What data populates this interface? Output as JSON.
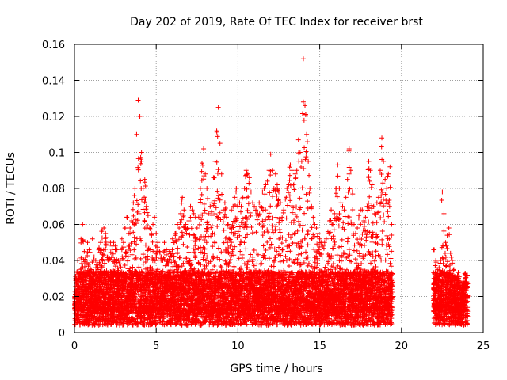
{
  "chart_data": {
    "type": "scatter",
    "title": "Day 202 of 2019, Rate Of TEC Index for receiver brst",
    "xlabel": "GPS time / hours",
    "ylabel": "ROTI / TECUs",
    "xlim": [
      0,
      25
    ],
    "ylim": [
      0,
      0.16
    ],
    "xticks": [
      "0",
      "5",
      "10",
      "15",
      "20",
      "25"
    ],
    "yticks": [
      "0",
      "0.02",
      "0.04",
      "0.06",
      "0.08",
      "0.1",
      "0.12",
      "0.14",
      "0.16"
    ],
    "grid": true,
    "marker": "+",
    "color": "#ff0000",
    "series": [
      {
        "x": [
          0.0,
          0.1,
          0.2,
          0.3,
          0.4,
          0.5,
          0.6,
          0.7,
          0.8,
          0.9,
          1.0,
          1.1,
          1.2,
          1.3,
          1.4,
          1.5,
          1.6,
          1.7,
          1.8,
          1.9,
          2.0,
          2.1,
          2.2,
          2.3,
          2.4,
          2.5,
          2.6,
          2.7,
          2.8,
          2.9,
          3.0,
          3.1,
          3.2,
          3.3,
          3.4,
          3.5,
          3.6,
          3.7,
          3.8,
          3.9,
          4.0,
          4.1,
          4.2,
          4.3,
          4.4,
          4.5,
          4.6,
          4.7,
          4.8,
          4.9,
          5.0,
          5.1,
          5.2,
          5.3,
          5.4,
          5.5,
          5.6,
          5.7,
          5.8,
          5.9,
          6.0,
          6.1,
          6.2,
          6.3,
          6.4,
          6.5,
          6.6,
          6.7,
          6.8,
          6.9,
          7.0,
          7.1,
          7.2,
          7.3,
          7.4,
          7.5,
          7.6,
          7.7,
          7.8,
          7.9,
          8.0,
          8.1,
          8.2,
          8.3,
          8.4,
          8.5,
          8.6,
          8.7,
          8.8,
          8.9,
          9.0,
          9.1,
          9.2,
          9.3,
          9.4,
          9.5,
          9.6,
          9.7,
          9.8,
          9.9,
          10.0,
          10.1,
          10.2,
          10.3,
          10.4,
          10.5,
          10.6,
          10.7,
          10.8,
          10.9,
          11.0,
          11.1,
          11.2,
          11.3,
          11.4,
          11.5,
          11.6,
          11.7,
          11.8,
          11.9,
          12.0,
          12.1,
          12.2,
          12.3,
          12.4,
          12.5,
          12.6,
          12.7,
          12.8,
          12.9,
          13.0,
          13.1,
          13.2,
          13.3,
          13.4,
          13.5,
          13.6,
          13.7,
          13.8,
          13.9,
          14.0,
          14.1,
          14.2,
          14.3,
          14.4,
          14.5,
          14.6,
          14.7,
          14.8,
          14.9,
          15.0,
          15.1,
          15.2,
          15.3,
          15.4,
          15.5,
          15.6,
          15.7,
          15.8,
          15.9,
          16.0,
          16.1,
          16.2,
          16.3,
          16.4,
          16.5,
          16.6,
          16.7,
          16.8,
          16.9,
          17.0,
          17.1,
          17.2,
          17.3,
          17.4,
          17.5,
          17.6,
          17.7,
          17.8,
          17.9,
          18.0,
          18.1,
          18.2,
          18.3,
          18.4,
          18.5,
          18.6,
          18.7,
          18.8,
          18.9,
          19.0,
          19.1,
          19.2,
          19.3,
          19.4,
          22.0,
          22.1,
          22.2,
          22.3,
          22.4,
          22.5,
          22.6,
          22.7,
          22.8,
          22.9,
          23.0,
          23.1,
          23.2,
          23.3,
          23.4,
          23.5,
          23.6,
          23.7,
          23.8,
          23.9,
          24.0
        ],
        "y": [
          0.023,
          0.028,
          0.04,
          0.033,
          0.052,
          0.06,
          0.045,
          0.038,
          0.05,
          0.046,
          0.035,
          0.052,
          0.042,
          0.04,
          0.038,
          0.047,
          0.05,
          0.057,
          0.058,
          0.055,
          0.042,
          0.04,
          0.05,
          0.048,
          0.05,
          0.048,
          0.046,
          0.04,
          0.04,
          0.052,
          0.05,
          0.058,
          0.064,
          0.055,
          0.058,
          0.062,
          0.072,
          0.08,
          0.11,
          0.129,
          0.12,
          0.1,
          0.08,
          0.085,
          0.07,
          0.065,
          0.058,
          0.055,
          0.06,
          0.064,
          0.055,
          0.05,
          0.045,
          0.042,
          0.04,
          0.05,
          0.046,
          0.04,
          0.045,
          0.044,
          0.052,
          0.05,
          0.055,
          0.06,
          0.058,
          0.066,
          0.075,
          0.068,
          0.06,
          0.058,
          0.062,
          0.07,
          0.068,
          0.066,
          0.064,
          0.058,
          0.064,
          0.08,
          0.094,
          0.102,
          0.088,
          0.08,
          0.066,
          0.07,
          0.072,
          0.086,
          0.095,
          0.112,
          0.125,
          0.105,
          0.088,
          0.068,
          0.072,
          0.064,
          0.06,
          0.058,
          0.068,
          0.07,
          0.075,
          0.08,
          0.074,
          0.072,
          0.07,
          0.075,
          0.08,
          0.09,
          0.088,
          0.086,
          0.078,
          0.072,
          0.07,
          0.068,
          0.066,
          0.072,
          0.07,
          0.078,
          0.08,
          0.082,
          0.084,
          0.09,
          0.099,
          0.09,
          0.08,
          0.088,
          0.082,
          0.078,
          0.072,
          0.064,
          0.068,
          0.074,
          0.08,
          0.082,
          0.093,
          0.09,
          0.082,
          0.088,
          0.09,
          0.107,
          0.1,
          0.095,
          0.152,
          0.126,
          0.11,
          0.095,
          0.08,
          0.07,
          0.064,
          0.06,
          0.058,
          0.055,
          0.052,
          0.05,
          0.048,
          0.05,
          0.052,
          0.056,
          0.062,
          0.068,
          0.06,
          0.066,
          0.08,
          0.093,
          0.08,
          0.072,
          0.07,
          0.068,
          0.075,
          0.085,
          0.102,
          0.09,
          0.078,
          0.06,
          0.055,
          0.058,
          0.065,
          0.068,
          0.068,
          0.062,
          0.064,
          0.07,
          0.095,
          0.09,
          0.082,
          0.07,
          0.066,
          0.072,
          0.075,
          0.09,
          0.108,
          0.095,
          0.085,
          0.08,
          0.088,
          0.092,
          0.06,
          0.046,
          0.04,
          0.035,
          0.036,
          0.04,
          0.078,
          0.066,
          0.05,
          0.054,
          0.058,
          0.044,
          0.04,
          0.035,
          0.03,
          0.028,
          0.03,
          0.026,
          0.024,
          0.026,
          0.03,
          0.028
        ],
        "floor_level": 0.012
      }
    ]
  }
}
